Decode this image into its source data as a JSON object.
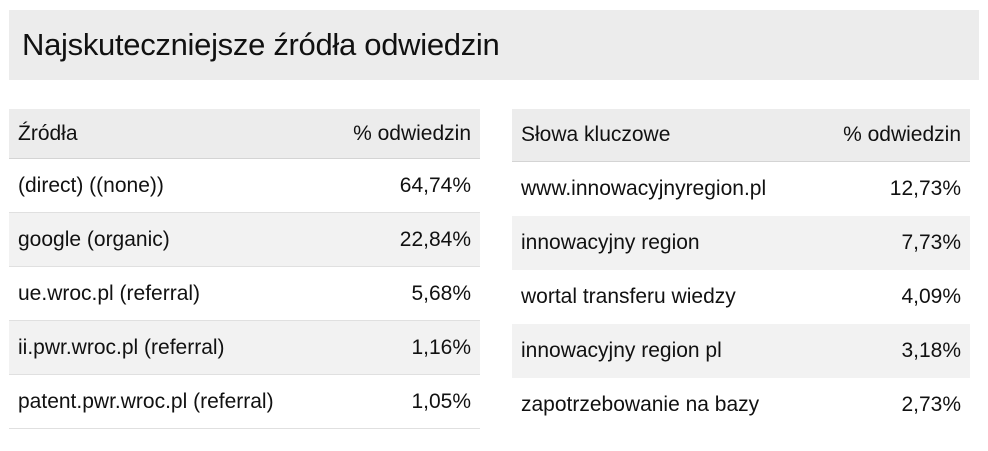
{
  "title": "Najskuteczniejsze źródła odwiedzin",
  "sources": {
    "header_label": "Źródła",
    "header_value": "% odwiedzin",
    "rows": [
      {
        "label": "(direct) ((none))",
        "value": "64,74%"
      },
      {
        "label": "google (organic)",
        "value": "22,84%"
      },
      {
        "label": "ue.wroc.pl (referral)",
        "value": "5,68%"
      },
      {
        "label": "ii.pwr.wroc.pl (referral)",
        "value": "1,16%"
      },
      {
        "label": "patent.pwr.wroc.pl (referral)",
        "value": "1,05%"
      }
    ]
  },
  "keywords": {
    "header_label": "Słowa kluczowe",
    "header_value": "% odwiedzin",
    "rows": [
      {
        "label": "www.innowacyjnyregion.pl",
        "value": "12,73%"
      },
      {
        "label": "innowacyjny region",
        "value": "7,73%"
      },
      {
        "label": "wortal transferu wiedzy",
        "value": "4,09%"
      },
      {
        "label": "innowacyjny region pl",
        "value": "3,18%"
      },
      {
        "label": "zapotrzebowanie na bazy",
        "value": "2,73%"
      }
    ]
  }
}
